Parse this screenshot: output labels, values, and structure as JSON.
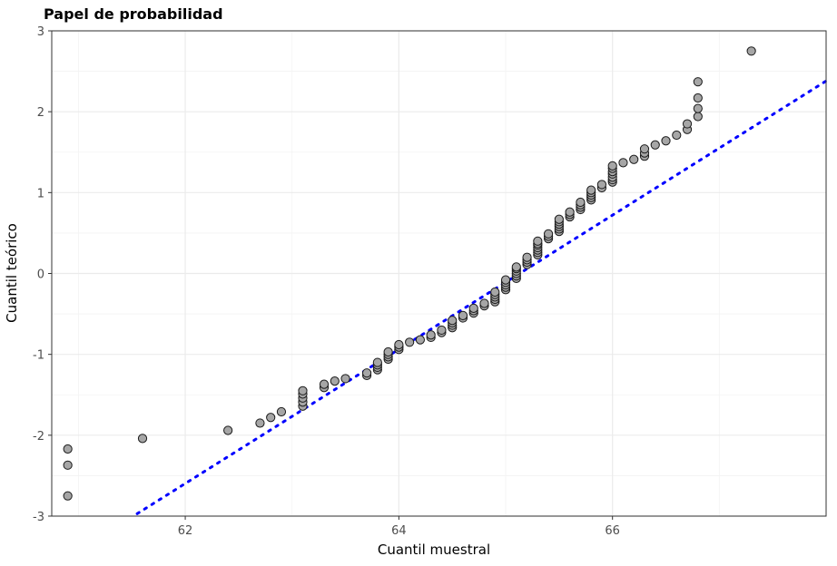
{
  "chart_data": {
    "type": "scatter",
    "title": "Papel de probabilidad",
    "xlabel": "Cuantil muestral",
    "ylabel": "Cuantil teórico",
    "xlim": [
      60.75,
      68.0
    ],
    "ylim": [
      -3.0,
      3.0
    ],
    "x_ticks": [
      62,
      64,
      66
    ],
    "x_tick_labels": [
      "62",
      "64",
      "66"
    ],
    "y_ticks": [
      -3,
      -2,
      -1,
      0,
      1,
      2,
      3
    ],
    "y_tick_labels": [
      "-3",
      "-2",
      "-1",
      "0",
      "1",
      "2",
      "3"
    ],
    "grid": true,
    "reference_line": {
      "style": "dotted",
      "color": "#0000ff",
      "from": [
        61.55,
        -2.97
      ],
      "to": [
        68.0,
        2.38
      ]
    },
    "point_style": {
      "fill": "#a6a6a6",
      "stroke": "#1a1a1a"
    },
    "colors": {
      "panel_border": "#333333",
      "grid_major": "#ebebeb",
      "grid_minor": "#f3f3f3"
    },
    "series": [
      {
        "points": [
          [
            60.9,
            -2.75
          ],
          [
            60.9,
            -2.37
          ],
          [
            60.9,
            -2.17
          ],
          [
            61.6,
            -2.04
          ],
          [
            62.4,
            -1.94
          ],
          [
            62.7,
            -1.85
          ],
          [
            62.8,
            -1.78
          ],
          [
            62.9,
            -1.71
          ],
          [
            63.1,
            -1.64
          ],
          [
            63.1,
            -1.59
          ],
          [
            63.1,
            -1.54
          ],
          [
            63.1,
            -1.49
          ],
          [
            63.1,
            -1.45
          ],
          [
            63.3,
            -1.41
          ],
          [
            63.3,
            -1.37
          ],
          [
            63.4,
            -1.33
          ],
          [
            63.5,
            -1.3
          ],
          [
            63.7,
            -1.26
          ],
          [
            63.7,
            -1.23
          ],
          [
            63.8,
            -1.19
          ],
          [
            63.8,
            -1.16
          ],
          [
            63.8,
            -1.13
          ],
          [
            63.8,
            -1.1
          ],
          [
            63.9,
            -1.06
          ],
          [
            63.9,
            -1.03
          ],
          [
            63.9,
            -1.0
          ],
          [
            63.9,
            -0.97
          ],
          [
            64.0,
            -0.94
          ],
          [
            64.0,
            -0.91
          ],
          [
            64.0,
            -0.88
          ],
          [
            64.1,
            -0.85
          ],
          [
            64.2,
            -0.82
          ],
          [
            64.3,
            -0.79
          ],
          [
            64.3,
            -0.76
          ],
          [
            64.4,
            -0.73
          ],
          [
            64.4,
            -0.7
          ],
          [
            64.5,
            -0.67
          ],
          [
            64.5,
            -0.64
          ],
          [
            64.5,
            -0.61
          ],
          [
            64.5,
            -0.58
          ],
          [
            64.6,
            -0.55
          ],
          [
            64.6,
            -0.52
          ],
          [
            64.7,
            -0.49
          ],
          [
            64.7,
            -0.46
          ],
          [
            64.7,
            -0.43
          ],
          [
            64.8,
            -0.4
          ],
          [
            64.8,
            -0.37
          ],
          [
            64.9,
            -0.35
          ],
          [
            64.9,
            -0.32
          ],
          [
            64.9,
            -0.29
          ],
          [
            64.9,
            -0.26
          ],
          [
            64.9,
            -0.23
          ],
          [
            65.0,
            -0.2
          ],
          [
            65.0,
            -0.17
          ],
          [
            65.0,
            -0.14
          ],
          [
            65.0,
            -0.11
          ],
          [
            65.0,
            -0.08
          ],
          [
            65.1,
            -0.06
          ],
          [
            65.1,
            -0.03
          ],
          [
            65.1,
            0.0
          ],
          [
            65.1,
            0.03
          ],
          [
            65.1,
            0.06
          ],
          [
            65.1,
            0.08
          ],
          [
            65.2,
            0.11
          ],
          [
            65.2,
            0.14
          ],
          [
            65.2,
            0.17
          ],
          [
            65.2,
            0.2
          ],
          [
            65.3,
            0.23
          ],
          [
            65.3,
            0.26
          ],
          [
            65.3,
            0.29
          ],
          [
            65.3,
            0.32
          ],
          [
            65.3,
            0.35
          ],
          [
            65.3,
            0.37
          ],
          [
            65.3,
            0.4
          ],
          [
            65.4,
            0.43
          ],
          [
            65.4,
            0.46
          ],
          [
            65.4,
            0.49
          ],
          [
            65.5,
            0.52
          ],
          [
            65.5,
            0.55
          ],
          [
            65.5,
            0.58
          ],
          [
            65.5,
            0.61
          ],
          [
            65.5,
            0.64
          ],
          [
            65.5,
            0.67
          ],
          [
            65.6,
            0.7
          ],
          [
            65.6,
            0.73
          ],
          [
            65.6,
            0.76
          ],
          [
            65.7,
            0.79
          ],
          [
            65.7,
            0.82
          ],
          [
            65.7,
            0.85
          ],
          [
            65.7,
            0.88
          ],
          [
            65.8,
            0.91
          ],
          [
            65.8,
            0.94
          ],
          [
            65.8,
            0.97
          ],
          [
            65.8,
            1.0
          ],
          [
            65.8,
            1.03
          ],
          [
            65.9,
            1.06
          ],
          [
            65.9,
            1.1
          ],
          [
            66.0,
            1.13
          ],
          [
            66.0,
            1.16
          ],
          [
            66.0,
            1.19
          ],
          [
            66.0,
            1.23
          ],
          [
            66.0,
            1.26
          ],
          [
            66.0,
            1.3
          ],
          [
            66.0,
            1.33
          ],
          [
            66.1,
            1.37
          ],
          [
            66.2,
            1.41
          ],
          [
            66.3,
            1.45
          ],
          [
            66.3,
            1.49
          ],
          [
            66.3,
            1.54
          ],
          [
            66.4,
            1.59
          ],
          [
            66.5,
            1.64
          ],
          [
            66.6,
            1.71
          ],
          [
            66.7,
            1.78
          ],
          [
            66.7,
            1.85
          ],
          [
            66.8,
            1.94
          ],
          [
            66.8,
            2.04
          ],
          [
            66.8,
            2.17
          ],
          [
            66.8,
            2.37
          ],
          [
            67.3,
            2.75
          ]
        ]
      }
    ]
  }
}
